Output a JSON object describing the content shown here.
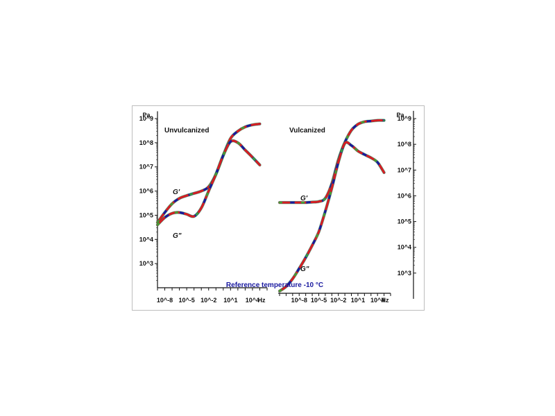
{
  "chart_data": [
    {
      "type": "line",
      "title": "Unvulcanized",
      "xscale": "log",
      "yscale": "log",
      "xlim": [
        1e-09,
        1000000.0
      ],
      "ylim": [
        100.0,
        1000000000.0
      ],
      "ylabel_unit": "Pa",
      "xlabel_unit": "Hz",
      "x_ticks": [
        "10^-8",
        "10^-5",
        "10^-2",
        "10^1",
        "10^4"
      ],
      "y_ticks": [
        "10^3",
        "10^4",
        "10^5",
        "10^6",
        "10^7",
        "10^8",
        "10^9"
      ],
      "series": [
        {
          "name": "G'",
          "x": [
            1e-09,
            1e-08,
            1e-07,
            1e-06,
            1e-05,
            0.0001,
            0.001,
            0.01,
            0.1,
            1,
            10,
            100,
            1000,
            10000,
            100000
          ],
          "y": [
            50000.0,
            130000.0,
            300000.0,
            500000.0,
            650000.0,
            800000.0,
            1000000.0,
            1500000.0,
            5000000.0,
            30000000.0,
            150000000.0,
            300000000.0,
            450000000.0,
            550000000.0,
            600000000.0
          ]
        },
        {
          "name": "G\"",
          "x": [
            1e-09,
            1e-08,
            1e-07,
            1e-06,
            1e-05,
            0.0001,
            0.001,
            0.01,
            0.1,
            1,
            10,
            100,
            1000,
            10000,
            100000
          ],
          "y": [
            40000.0,
            80000.0,
            120000.0,
            130000.0,
            110000.0,
            90000.0,
            200000.0,
            1000000.0,
            5000000.0,
            30000000.0,
            110000000.0,
            100000000.0,
            50000000.0,
            25000000.0,
            12000000.0
          ]
        }
      ],
      "annotations": [
        "G'",
        "G\""
      ]
    },
    {
      "type": "line",
      "title": "Vulcanized",
      "xscale": "log",
      "yscale": "log",
      "xlim": [
        1e-11,
        1000000.0
      ],
      "ylim": [
        100.0,
        1000000000.0
      ],
      "ylabel_unit": "Pa",
      "xlabel_unit": "Hz",
      "x_ticks": [
        "10^-8",
        "10^-5",
        "10^-2",
        "10^1",
        "10^4"
      ],
      "y_ticks": [
        "10^3",
        "10^4",
        "10^5",
        "10^6",
        "10^7",
        "10^8",
        "10^9"
      ],
      "series": [
        {
          "name": "G'",
          "x": [
            1e-11,
            1e-10,
            1e-09,
            1e-08,
            1e-07,
            1e-06,
            1e-05,
            0.0001,
            0.001,
            0.01,
            0.1,
            1,
            10,
            100,
            1000,
            10000,
            100000
          ],
          "y": [
            550000.0,
            550000.0,
            550000.0,
            550000.0,
            550000.0,
            570000.0,
            600000.0,
            800000.0,
            3000000.0,
            25000000.0,
            120000000.0,
            350000000.0,
            600000000.0,
            750000000.0,
            800000000.0,
            850000000.0,
            850000000.0
          ]
        },
        {
          "name": "G\"",
          "x": [
            1e-11,
            1e-10,
            1e-09,
            1e-08,
            1e-07,
            1e-06,
            1e-05,
            0.0001,
            0.001,
            0.01,
            0.1,
            1,
            10,
            100,
            1000,
            10000,
            100000
          ],
          "y": [
            200.0,
            300.0,
            600.0,
            1500.0,
            4000.0,
            12000.0,
            40000.0,
            250000.0,
            2000000.0,
            20000000.0,
            110000000.0,
            90000000.0,
            55000000.0,
            40000000.0,
            30000000.0,
            20000000.0,
            8000000.0
          ]
        }
      ],
      "annotations": [
        "G'",
        "G\""
      ]
    }
  ],
  "reference_text": "Reference temperature -10 °C",
  "colors": {
    "curve_main": "#d82020",
    "curve_alt": "#1a1a9a",
    "curve_green": "#3aaa30",
    "curve_dark": "#111111",
    "ref_text": "#1a1aa0",
    "axis": "#111111",
    "frame": "#bdbdbd"
  }
}
